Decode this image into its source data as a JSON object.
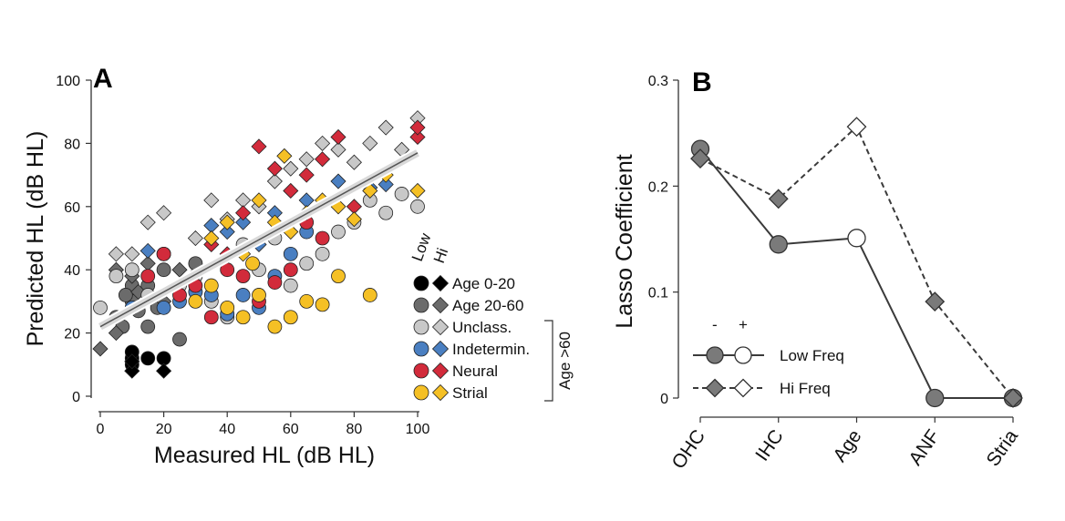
{
  "chart_data": [
    {
      "panel_label": "A",
      "type": "scatter",
      "xlabel": "Measured HL (dB HL)",
      "ylabel": "Predicted HL (dB HL)",
      "xlim": [
        0,
        100
      ],
      "ylim": [
        0,
        100
      ],
      "xticks": [
        0,
        20,
        40,
        60,
        80,
        100
      ],
      "yticks": [
        0,
        20,
        40,
        60,
        80,
        100
      ],
      "fit_line": {
        "x": [
          0,
          100
        ],
        "y": [
          22,
          77
        ]
      },
      "marker_header": {
        "low": "Low",
        "hi": "Hi"
      },
      "bracket_label": "Age >60",
      "series": [
        {
          "name": "Age 0-20",
          "color": "#000000",
          "low_points": [
            [
              10,
              12
            ],
            [
              10,
              14
            ],
            [
              15,
              12
            ],
            [
              20,
              12
            ],
            [
              10,
              10
            ]
          ],
          "hi_points": [
            [
              10,
              8
            ],
            [
              20,
              8
            ],
            [
              10,
              11
            ]
          ]
        },
        {
          "name": "Age 20-60",
          "color": "#6b6b6b",
          "low_points": [
            [
              5,
              25
            ],
            [
              7,
              22
            ],
            [
              10,
              30
            ],
            [
              12,
              27
            ],
            [
              15,
              35
            ],
            [
              18,
              28
            ],
            [
              10,
              35
            ],
            [
              25,
              18
            ],
            [
              20,
              40
            ],
            [
              30,
              42
            ],
            [
              15,
              22
            ],
            [
              8,
              32
            ]
          ],
          "hi_points": [
            [
              0,
              15
            ],
            [
              5,
              40
            ],
            [
              10,
              38
            ],
            [
              15,
              42
            ],
            [
              20,
              30
            ],
            [
              25,
              40
            ],
            [
              5,
              20
            ],
            [
              12,
              33
            ]
          ]
        },
        {
          "name": "Unclass.",
          "color": "#c8c8c8",
          "low_points": [
            [
              0,
              28
            ],
            [
              5,
              38
            ],
            [
              10,
              40
            ],
            [
              20,
              45
            ],
            [
              30,
              38
            ],
            [
              40,
              25
            ],
            [
              50,
              40
            ],
            [
              60,
              35
            ],
            [
              70,
              45
            ],
            [
              80,
              55
            ],
            [
              90,
              58
            ],
            [
              100,
              60
            ],
            [
              55,
              50
            ],
            [
              65,
              42
            ],
            [
              75,
              52
            ],
            [
              85,
              62
            ],
            [
              45,
              48
            ],
            [
              35,
              30
            ],
            [
              25,
              35
            ],
            [
              15,
              32
            ],
            [
              95,
              64
            ]
          ],
          "hi_points": [
            [
              5,
              45
            ],
            [
              15,
              55
            ],
            [
              20,
              58
            ],
            [
              35,
              62
            ],
            [
              45,
              62
            ],
            [
              55,
              68
            ],
            [
              65,
              75
            ],
            [
              75,
              78
            ],
            [
              85,
              80
            ],
            [
              90,
              85
            ],
            [
              100,
              88
            ],
            [
              60,
              72
            ],
            [
              70,
              80
            ],
            [
              80,
              74
            ],
            [
              95,
              78
            ],
            [
              50,
              60
            ],
            [
              40,
              56
            ],
            [
              30,
              50
            ],
            [
              10,
              45
            ]
          ]
        },
        {
          "name": "Indetermin.",
          "color": "#4a7fc1",
          "low_points": [
            [
              10,
              28
            ],
            [
              20,
              28
            ],
            [
              30,
              33
            ],
            [
              40,
              26
            ],
            [
              50,
              28
            ],
            [
              35,
              32
            ],
            [
              45,
              32
            ],
            [
              55,
              38
            ],
            [
              60,
              45
            ],
            [
              25,
              30
            ],
            [
              65,
              52
            ]
          ],
          "hi_points": [
            [
              15,
              46
            ],
            [
              35,
              54
            ],
            [
              45,
              55
            ],
            [
              55,
              58
            ],
            [
              65,
              62
            ],
            [
              75,
              68
            ],
            [
              85,
              66
            ],
            [
              90,
              67
            ],
            [
              40,
              52
            ],
            [
              50,
              48
            ]
          ]
        },
        {
          "name": "Neural",
          "color": "#d22b3b",
          "low_points": [
            [
              15,
              38
            ],
            [
              20,
              45
            ],
            [
              30,
              35
            ],
            [
              40,
              40
            ],
            [
              50,
              30
            ],
            [
              60,
              40
            ],
            [
              70,
              50
            ],
            [
              35,
              25
            ],
            [
              25,
              32
            ],
            [
              55,
              36
            ],
            [
              45,
              38
            ],
            [
              65,
              55
            ]
          ],
          "hi_points": [
            [
              50,
              79
            ],
            [
              55,
              72
            ],
            [
              60,
              65
            ],
            [
              65,
              70
            ],
            [
              70,
              75
            ],
            [
              75,
              82
            ],
            [
              100,
              82
            ],
            [
              100,
              85
            ],
            [
              45,
              58
            ],
            [
              40,
              45
            ],
            [
              35,
              48
            ],
            [
              80,
              60
            ]
          ]
        },
        {
          "name": "Strial",
          "color": "#f5c025",
          "low_points": [
            [
              30,
              30
            ],
            [
              40,
              28
            ],
            [
              45,
              25
            ],
            [
              50,
              32
            ],
            [
              55,
              22
            ],
            [
              60,
              25
            ],
            [
              70,
              29
            ],
            [
              85,
              32
            ],
            [
              35,
              35
            ],
            [
              65,
              30
            ],
            [
              75,
              38
            ],
            [
              48,
              42
            ]
          ],
          "hi_points": [
            [
              35,
              50
            ],
            [
              40,
              55
            ],
            [
              50,
              62
            ],
            [
              55,
              55
            ],
            [
              60,
              52
            ],
            [
              65,
              58
            ],
            [
              70,
              62
            ],
            [
              75,
              60
            ],
            [
              80,
              56
            ],
            [
              85,
              65
            ],
            [
              90,
              70
            ],
            [
              100,
              65
            ],
            [
              45,
              45
            ],
            [
              58,
              76
            ]
          ]
        }
      ]
    },
    {
      "panel_label": "B",
      "type": "line",
      "ylabel": "Lasso Coefficient",
      "categories": [
        "OHC",
        "IHC",
        "Age",
        "ANF",
        "Stria"
      ],
      "ylim": [
        0,
        0.3
      ],
      "yticks": [
        0,
        0.1,
        0.2,
        0.3
      ],
      "ytick_labels": [
        "0",
        "0.1",
        "0.2",
        "0.3"
      ],
      "sign_header": {
        "minus": "-",
        "plus": "+"
      },
      "series": [
        {
          "name": "Low Freq",
          "marker": "circle",
          "line": "solid",
          "values": [
            0.235,
            0.145,
            0.151,
            0.0,
            0.0
          ],
          "positive": [
            false,
            false,
            true,
            false,
            false
          ]
        },
        {
          "name": "Hi Freq",
          "marker": "diamond",
          "line": "dashed",
          "values": [
            0.226,
            0.188,
            0.256,
            0.091,
            0.0
          ],
          "positive": [
            false,
            false,
            true,
            false,
            false
          ]
        }
      ]
    }
  ],
  "colors": {
    "axis": "#333333",
    "line": "#3a3a3a",
    "negative_fill": "#7a7a7a",
    "positive_fill": "#ffffff",
    "fit_band": "#d9d9d9"
  }
}
